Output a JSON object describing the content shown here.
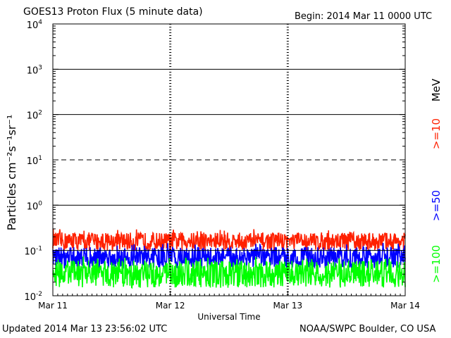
{
  "title": "GOES13 Proton Flux (5 minute data)",
  "begin": "Begin: 2014 Mar 11 0000 UTC",
  "updated": "Updated 2014 Mar 13 23:56:02 UTC",
  "credit": "NOAA/SWPC Boulder, CO USA",
  "chart_data": {
    "type": "line",
    "title": "GOES13 Proton Flux (5 minute data)",
    "xlabel": "Universal Time",
    "ylabel": "Particles cm⁻²s⁻¹sr⁻¹",
    "yscale": "log",
    "ylim": [
      0.01,
      10000
    ],
    "x_ticks": [
      "Mar 11",
      "Mar 12",
      "Mar 13",
      "Mar 14"
    ],
    "y_ticks": [
      {
        "base": "10",
        "exp": "-2"
      },
      {
        "base": "10",
        "exp": "-1"
      },
      {
        "base": "10",
        "exp": "0"
      },
      {
        "base": "10",
        "exp": "1"
      },
      {
        "base": "10",
        "exp": "2"
      },
      {
        "base": "10",
        "exp": "3"
      },
      {
        "base": "10",
        "exp": "4"
      }
    ],
    "unit_label": "MeV",
    "thresholds": [
      {
        "value": 10,
        "style": "dashed"
      }
    ],
    "series": [
      {
        "name": ">=10",
        "color": "#ff2000",
        "typical_range": [
          0.1,
          0.25
        ]
      },
      {
        "name": ">=50",
        "color": "#0000ff",
        "typical_range": [
          0.04,
          0.12
        ]
      },
      {
        "name": ">=100",
        "color": "#00ff00",
        "typical_range": [
          0.015,
          0.06
        ]
      }
    ]
  }
}
